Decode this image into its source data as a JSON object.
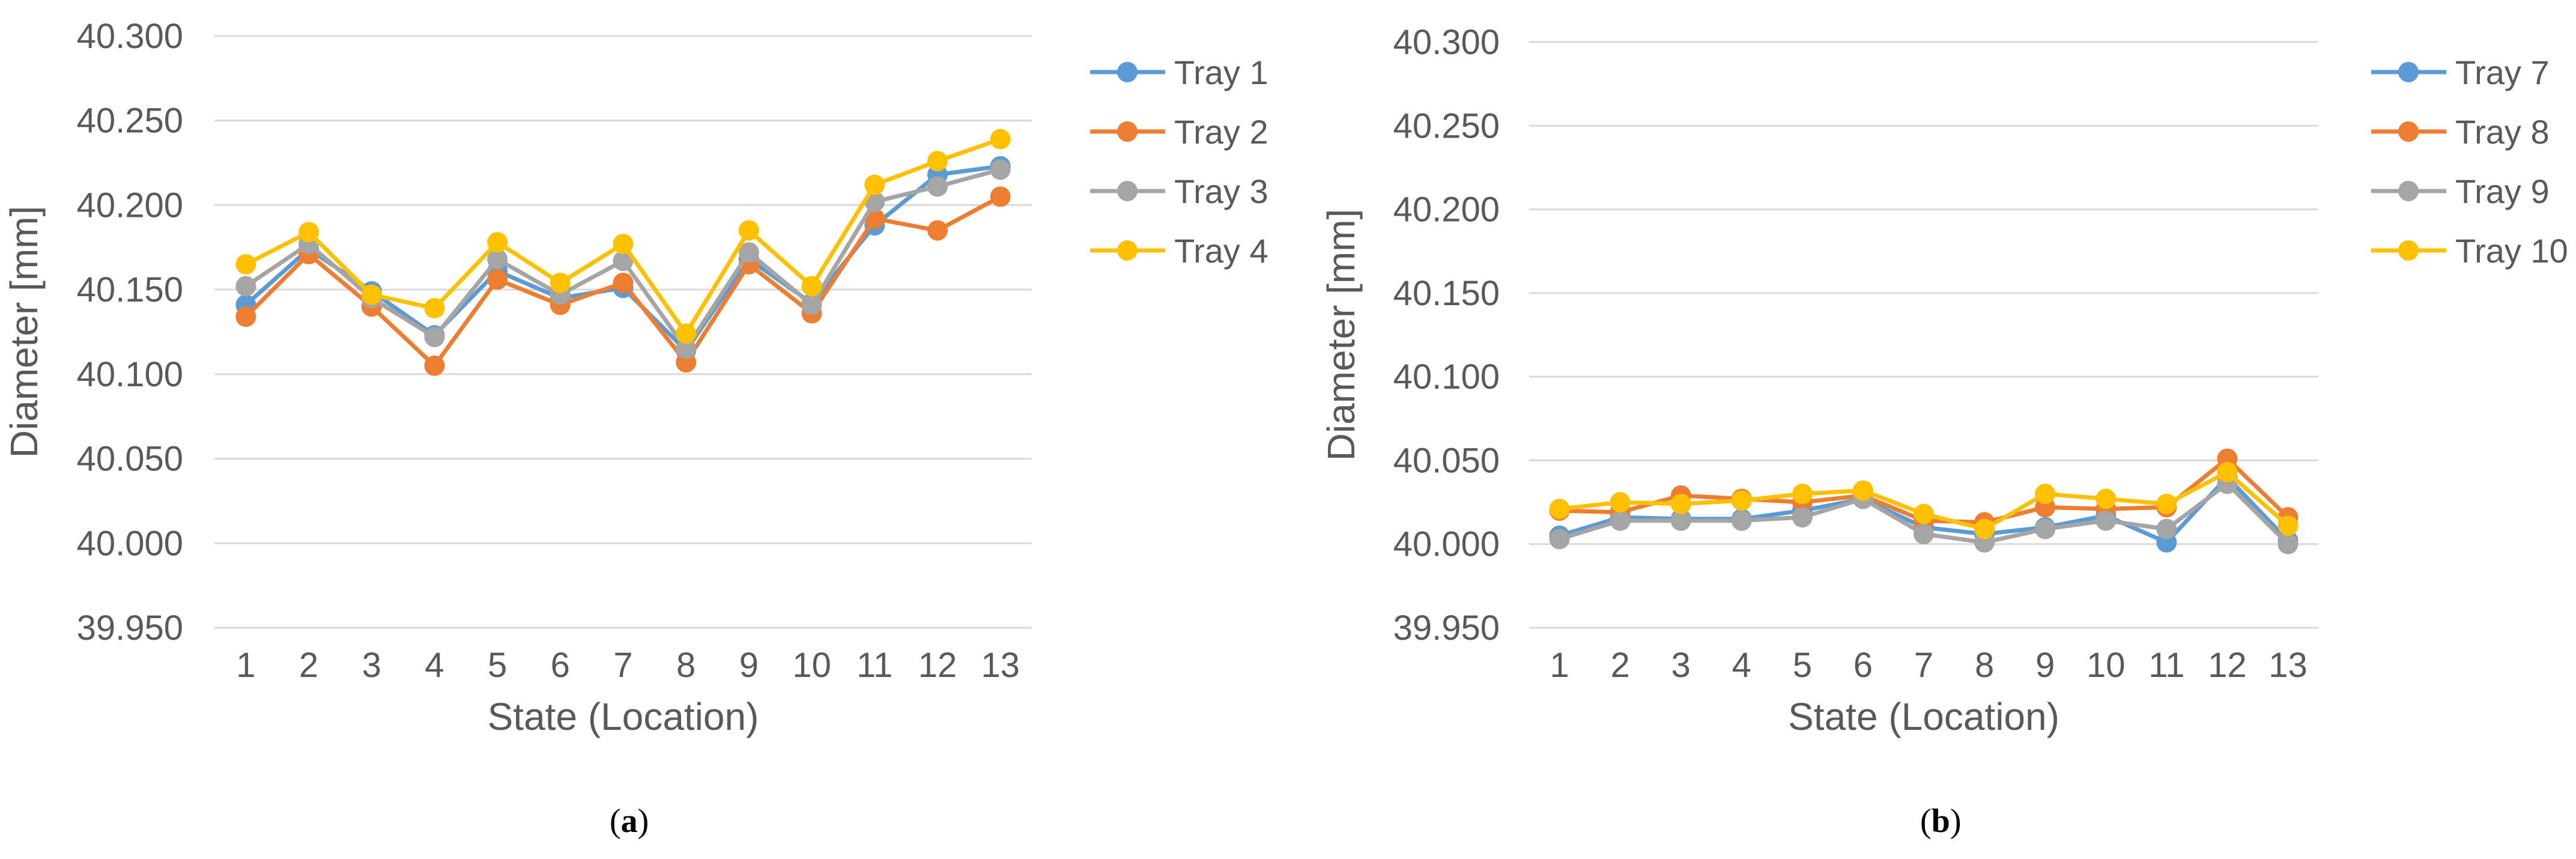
{
  "colors": {
    "series": [
      "#5B9BD5",
      "#ED7D31",
      "#A5A5A5",
      "#FFC000"
    ],
    "grid": "#D9D9D9",
    "text": "#595959"
  },
  "captions": [
    {
      "open": "(",
      "letter": "a",
      "close": ")"
    },
    {
      "open": "(",
      "letter": "b",
      "close": ")"
    }
  ],
  "chart_data": [
    {
      "type": "line",
      "title": "",
      "xlabel": "State (Location)",
      "ylabel": "Diameter [mm]",
      "ylim": [
        39.95,
        40.3
      ],
      "yticks": [
        "39.950",
        "40.000",
        "40.050",
        "40.100",
        "40.150",
        "40.200",
        "40.250",
        "40.300"
      ],
      "grid": true,
      "legend": "right",
      "categories": [
        "1",
        "2",
        "3",
        "4",
        "5",
        "6",
        "7",
        "8",
        "9",
        "10",
        "11",
        "12",
        "13"
      ],
      "series": [
        {
          "name": "Tray 1",
          "color": "#5B9BD5",
          "values": [
            40.141,
            40.174,
            40.149,
            40.123,
            40.161,
            40.145,
            40.151,
            40.114,
            40.168,
            40.142,
            40.188,
            40.218,
            40.223
          ]
        },
        {
          "name": "Tray 2",
          "color": "#ED7D31",
          "values": [
            40.134,
            40.171,
            40.14,
            40.105,
            40.156,
            40.141,
            40.154,
            40.107,
            40.165,
            40.136,
            40.192,
            40.185,
            40.205
          ]
        },
        {
          "name": "Tray 3",
          "color": "#A5A5A5",
          "values": [
            40.152,
            40.177,
            40.145,
            40.122,
            40.168,
            40.147,
            40.167,
            40.115,
            40.172,
            40.141,
            40.202,
            40.211,
            40.221
          ]
        },
        {
          "name": "Tray 4",
          "color": "#FFC000",
          "values": [
            40.165,
            40.184,
            40.147,
            40.139,
            40.178,
            40.154,
            40.177,
            40.124,
            40.185,
            40.152,
            40.212,
            40.226,
            40.239
          ]
        }
      ]
    },
    {
      "type": "line",
      "title": "",
      "xlabel": "State (Location)",
      "ylabel": "Diameter [mm]",
      "ylim": [
        39.95,
        40.3
      ],
      "yticks": [
        "39.950",
        "40.000",
        "40.050",
        "40.100",
        "40.150",
        "40.200",
        "40.250",
        "40.300"
      ],
      "grid": true,
      "legend": "right",
      "categories": [
        "1",
        "2",
        "3",
        "4",
        "5",
        "6",
        "7",
        "8",
        "9",
        "10",
        "11",
        "12",
        "13"
      ],
      "series": [
        {
          "name": "Tray 7",
          "color": "#5B9BD5",
          "values": [
            40.005,
            40.016,
            40.015,
            40.015,
            40.02,
            40.027,
            40.01,
            40.006,
            40.01,
            40.017,
            40.001,
            40.04,
            40.002
          ]
        },
        {
          "name": "Tray 8",
          "color": "#ED7D31",
          "values": [
            40.02,
            40.019,
            40.029,
            40.027,
            40.025,
            40.029,
            40.014,
            40.013,
            40.022,
            40.021,
            40.022,
            40.051,
            40.016
          ]
        },
        {
          "name": "Tray 9",
          "color": "#A5A5A5",
          "values": [
            40.003,
            40.014,
            40.014,
            40.014,
            40.016,
            40.027,
            40.006,
            40.001,
            40.009,
            40.014,
            40.009,
            40.036,
            40.0
          ]
        },
        {
          "name": "Tray 10",
          "color": "#FFC000",
          "values": [
            40.021,
            40.025,
            40.024,
            40.026,
            40.03,
            40.032,
            40.018,
            40.009,
            40.03,
            40.027,
            40.024,
            40.043,
            40.011
          ]
        }
      ]
    }
  ]
}
